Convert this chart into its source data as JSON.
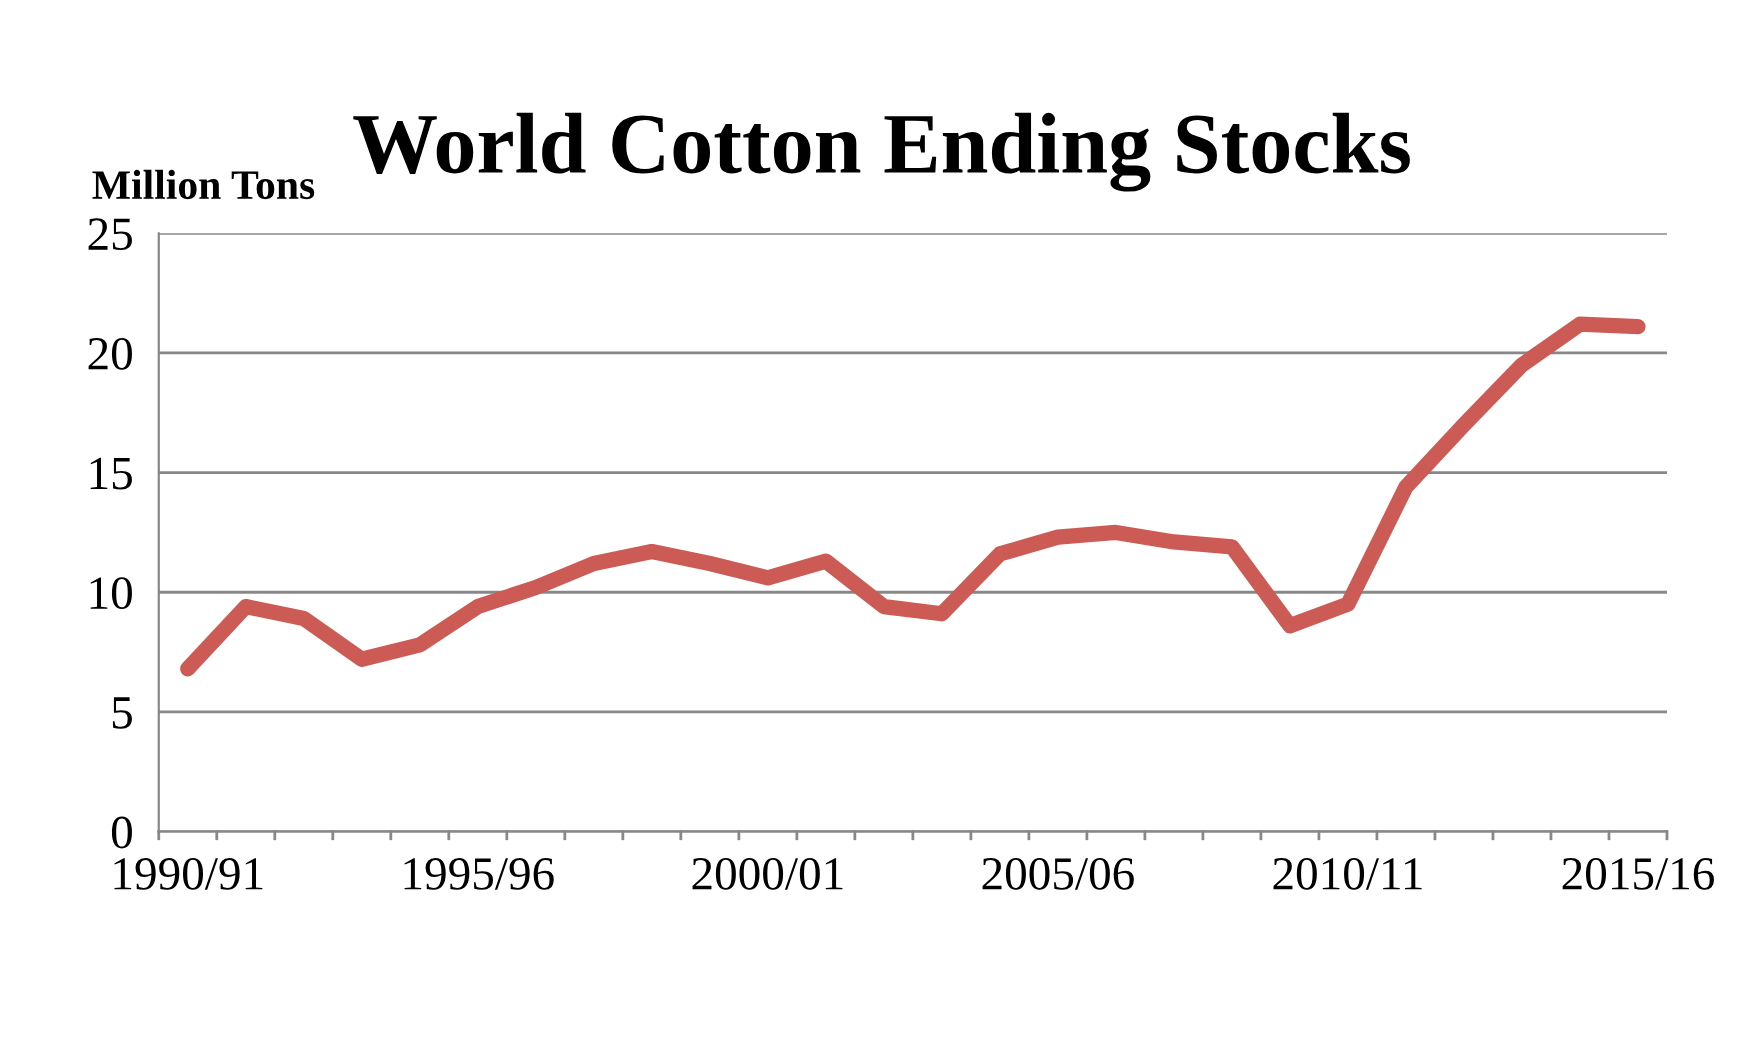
{
  "chart_data": {
    "type": "line",
    "title": "World Cotton Ending Stocks",
    "ylabel": "Million Tons",
    "categories": [
      "1990/91",
      null,
      null,
      null,
      null,
      "1995/96",
      null,
      null,
      null,
      null,
      "2000/01",
      null,
      null,
      null,
      null,
      "2005/06",
      null,
      null,
      null,
      null,
      "2010/11",
      null,
      null,
      null,
      null,
      "2015/16"
    ],
    "series": [
      {
        "color": "#cc5b55",
        "values": [
          6.8,
          9.4,
          8.9,
          7.2,
          7.8,
          9.4,
          10.2,
          11.2,
          11.7,
          11.2,
          10.6,
          11.3,
          9.4,
          9.1,
          11.6,
          12.3,
          12.5,
          12.1,
          11.9,
          8.6,
          9.5,
          14.4,
          17.0,
          19.5,
          21.2,
          21.1
        ]
      }
    ],
    "ylim": [
      0,
      25
    ],
    "yticks": [
      0,
      5,
      10,
      15,
      20,
      25
    ],
    "grid": "y",
    "marker": "none",
    "line_style": "solid"
  }
}
